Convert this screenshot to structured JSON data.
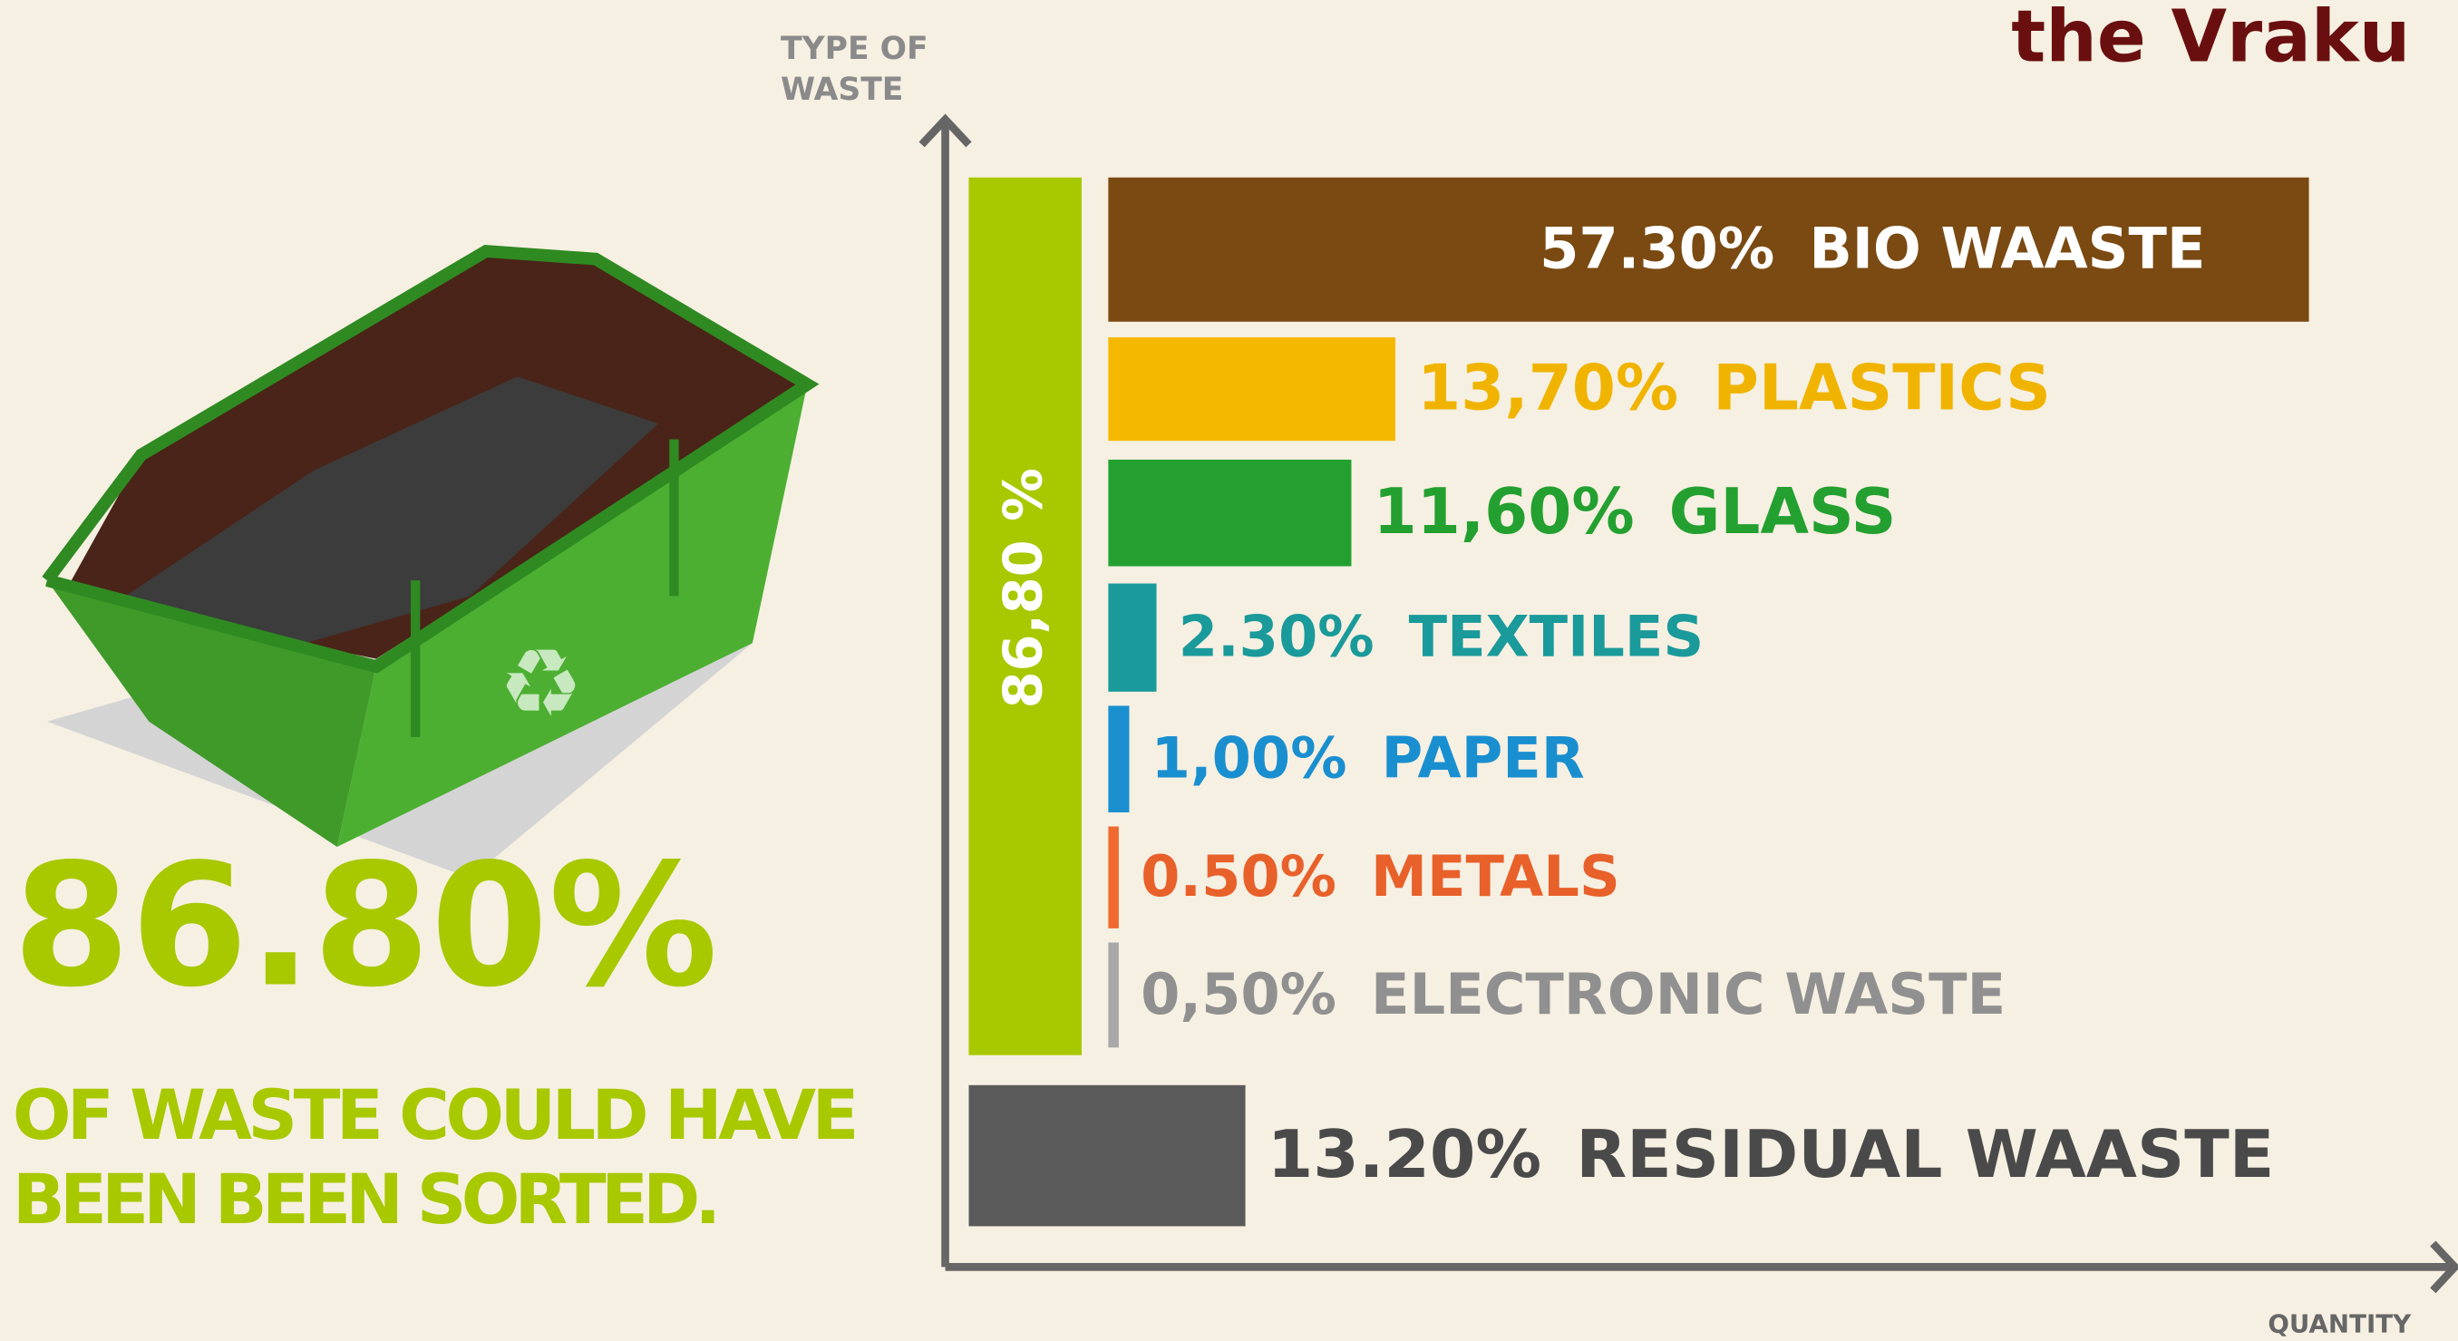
{
  "chart_data": {
    "type": "bar",
    "brand": "the Vraku",
    "y_axis_label": [
      "TYPE OF",
      "WASTE"
    ],
    "x_axis_label": "QUANTITY",
    "headline": "86.80%",
    "subheadline": [
      "OF WASTE COULD HAVE",
      "BEEN BEEN SORTED."
    ],
    "sorted_total": {
      "value": 86.8,
      "label": "86,80 %",
      "color": "#a8c800"
    },
    "categories": [
      "BIO WAASTE",
      "PLASTICS",
      "GLASS",
      "TEXTILES",
      "PAPER",
      "METALS",
      "ELECTRONIC WASTE",
      "RESIDUAL WAASTE"
    ],
    "values": [
      57.3,
      13.7,
      11.6,
      2.3,
      1.0,
      0.5,
      0.5,
      13.2
    ],
    "value_labels": [
      "57.30%",
      "13,70%",
      "11,60%",
      "2.30%",
      "1,00%",
      "0.50%",
      "0,50%",
      "13.20%"
    ],
    "colors": [
      "#7a4a12",
      "#f5b800",
      "#23a030",
      "#1a9a9a",
      "#1a8fd0",
      "#f06a30",
      "#a8a8a8",
      "#5a5a5a"
    ],
    "label_colors": [
      "#ffffff",
      "#f0b400",
      "#23a030",
      "#1a9a9a",
      "#1a8fd0",
      "#e8602a",
      "#909090",
      "#4a4a4a"
    ],
    "xlim": [
      0,
      60
    ]
  }
}
